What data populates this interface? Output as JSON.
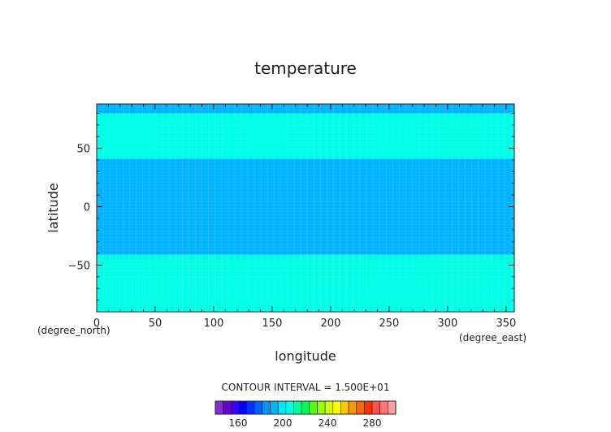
{
  "chart_data": {
    "type": "heatmap",
    "title": "temperature",
    "xlabel": "longitude",
    "ylabel": "latitude",
    "x_unit": "(degree_east)",
    "y_unit": "(degree_north)",
    "xlim": [
      0,
      357
    ],
    "ylim": [
      -90,
      88
    ],
    "xticks": [
      0,
      50,
      100,
      150,
      200,
      250,
      300,
      350
    ],
    "yticks": [
      -50,
      0,
      50
    ],
    "bands": [
      {
        "lat_from": 80,
        "lat_to": 88,
        "level": 195,
        "color": "#00b4ff"
      },
      {
        "lat_from": 41,
        "lat_to": 80,
        "level": 205,
        "color": "#00ffe6"
      },
      {
        "lat_from": -41,
        "lat_to": 41,
        "level": 195,
        "color": "#00b4ff"
      },
      {
        "lat_from": -90,
        "lat_to": -41,
        "level": 205,
        "color": "#00ffe6"
      }
    ],
    "contour_interval_text": "CONTOUR INTERVAL = 1.500E+01",
    "colorbar": {
      "colors": [
        "#8a2be2",
        "#6a00d8",
        "#3a00ff",
        "#0000ff",
        "#0032ff",
        "#0064ff",
        "#0096ff",
        "#00b4ff",
        "#00e6ff",
        "#00ffe6",
        "#00ff96",
        "#00ff50",
        "#50ff00",
        "#96ff00",
        "#d2ff00",
        "#ffff00",
        "#ffc800",
        "#ff9600",
        "#ff6400",
        "#ff3200",
        "#ff5050",
        "#ff7878",
        "#ffa0a0"
      ],
      "tick_labels": [
        "160",
        "200",
        "240",
        "280"
      ]
    }
  }
}
